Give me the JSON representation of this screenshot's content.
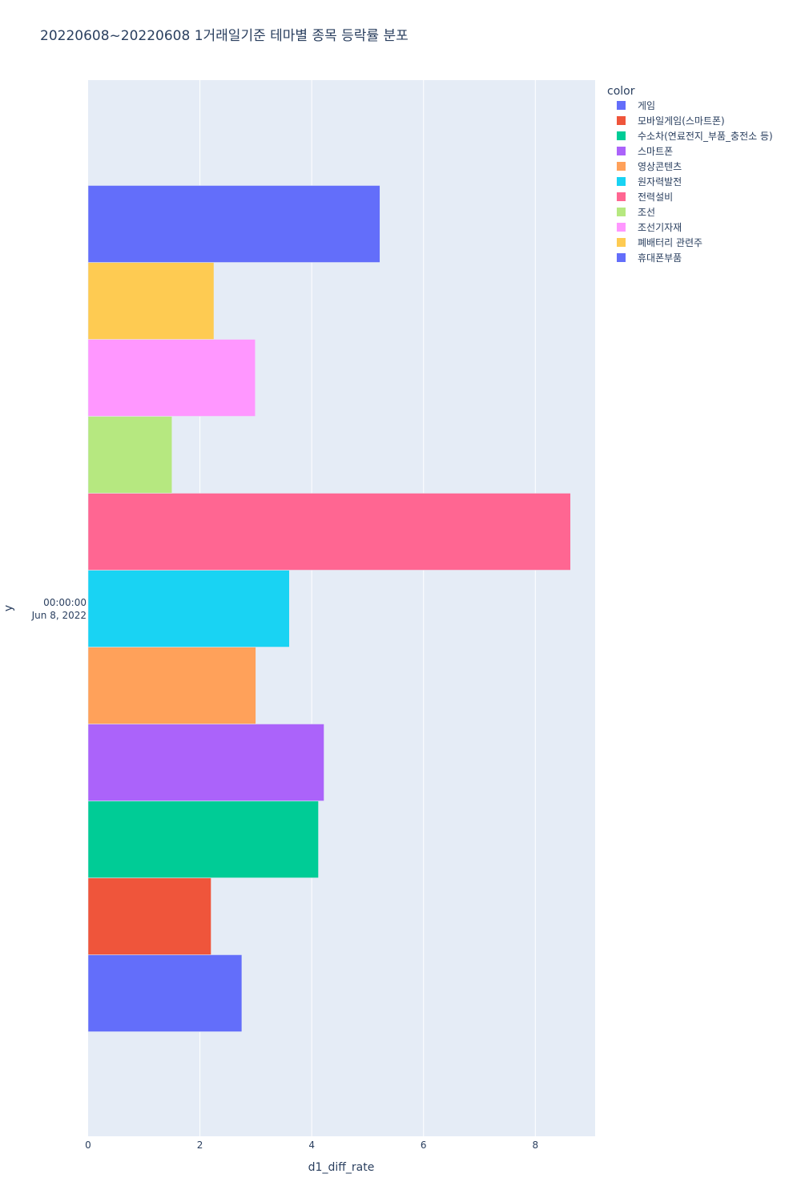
{
  "chart_data": {
    "type": "bar",
    "orientation": "horizontal",
    "barmode": "group",
    "title": "20220608~20220608 1거래일기준 테마별 종목 등락률 분포",
    "xlabel": "d1_diff_rate",
    "ylabel": "y",
    "xlim": [
      0,
      9.07
    ],
    "x_ticks": [
      "0",
      "2",
      "4",
      "6",
      "8"
    ],
    "y_category_lines": [
      "00:00:00",
      "Jun 8, 2022"
    ],
    "grid": true,
    "legend_title": "color",
    "legend_position": "top-right",
    "series": [
      {
        "name": "게임",
        "value": 2.75,
        "color": "#636efa"
      },
      {
        "name": "모바일게임(스마트폰)",
        "value": 2.2,
        "color": "#EF553B"
      },
      {
        "name": "수소차(연료전지_부품_충전소 등)",
        "value": 4.12,
        "color": "#00cc96"
      },
      {
        "name": "스마트폰",
        "value": 4.22,
        "color": "#ab63fa"
      },
      {
        "name": "영상콘텐츠",
        "value": 3.0,
        "color": "#FFA15A"
      },
      {
        "name": "원자력발전",
        "value": 3.6,
        "color": "#19d3f3"
      },
      {
        "name": "전력설비",
        "value": 8.63,
        "color": "#FF6692"
      },
      {
        "name": "조선",
        "value": 1.5,
        "color": "#B6E880"
      },
      {
        "name": "조선기자재",
        "value": 2.99,
        "color": "#FF97FF"
      },
      {
        "name": "폐배터리 관련주",
        "value": 2.25,
        "color": "#FECB52"
      },
      {
        "name": "휴대폰부품",
        "value": 5.22,
        "color": "#636efa"
      }
    ]
  }
}
